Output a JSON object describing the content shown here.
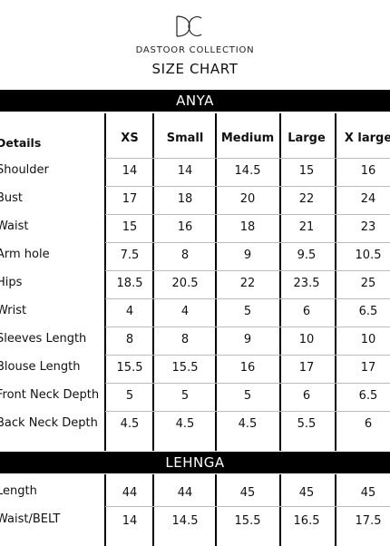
{
  "brand": {
    "logo_text": "DC",
    "name": "DASTOOR COLLECTION",
    "title": "SIZE CHART"
  },
  "anya": {
    "title": "ANYA",
    "header": {
      "details": "Details",
      "sizes": [
        "XS",
        "Small",
        "Medium",
        "Large",
        "X large"
      ]
    },
    "rows": [
      {
        "label": "Shoulder",
        "values": [
          "14",
          "14",
          "14.5",
          "15",
          "16"
        ]
      },
      {
        "label": "Bust",
        "values": [
          "17",
          "18",
          "20",
          "22",
          "24"
        ]
      },
      {
        "label": "Waist",
        "values": [
          "15",
          "16",
          "18",
          "21",
          "23"
        ]
      },
      {
        "label": "Arm hole",
        "values": [
          "7.5",
          "8",
          "9",
          "9.5",
          "10.5"
        ]
      },
      {
        "label": "Hips",
        "values": [
          "18.5",
          "20.5",
          "22",
          "23.5",
          "25"
        ]
      },
      {
        "label": "Wrist",
        "values": [
          "4",
          "4",
          "5",
          "6",
          "6.5"
        ]
      },
      {
        "label": "Sleeves Length",
        "values": [
          "8",
          "8",
          "9",
          "10",
          "10"
        ]
      },
      {
        "label": "Blouse Length",
        "values": [
          "15.5",
          "15.5",
          "16",
          "17",
          "17"
        ]
      },
      {
        "label": "Front Neck Depth",
        "values": [
          "5",
          "5",
          "5",
          "6",
          "6.5"
        ]
      },
      {
        "label": "Back Neck Depth",
        "values": [
          "4.5",
          "4.5",
          "4.5",
          "5.5",
          "6"
        ]
      }
    ]
  },
  "lehnga": {
    "title": "LEHNGA",
    "rows": [
      {
        "label": "Length",
        "values": [
          "44",
          "44",
          "45",
          "45",
          "45"
        ]
      },
      {
        "label": "Waist/BELT",
        "values": [
          "14",
          "14.5",
          "15.5",
          "16.5",
          "17.5"
        ]
      }
    ]
  }
}
